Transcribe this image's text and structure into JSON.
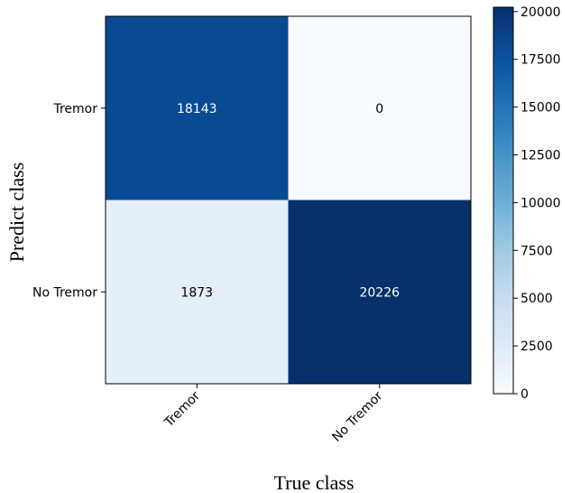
{
  "chart_data": {
    "type": "heatmap",
    "title": "",
    "xlabel": "True class",
    "ylabel": "Predict class",
    "x_categories": [
      "Tremor",
      "No Tremor"
    ],
    "y_categories": [
      "Tremor",
      "No Tremor"
    ],
    "values": [
      [
        18143,
        0
      ],
      [
        1873,
        20226
      ]
    ],
    "colorbar": {
      "min": 0,
      "max": 20226,
      "ticks": [
        0,
        2500,
        5000,
        7500,
        10000,
        12500,
        15000,
        17500,
        20000
      ]
    },
    "colormap": "Blues",
    "colors": {
      "low": "#f7fbff",
      "high": "#08306b",
      "cell_text_light": "#ffffff",
      "cell_text_dark": "#000000"
    },
    "grid": false
  }
}
